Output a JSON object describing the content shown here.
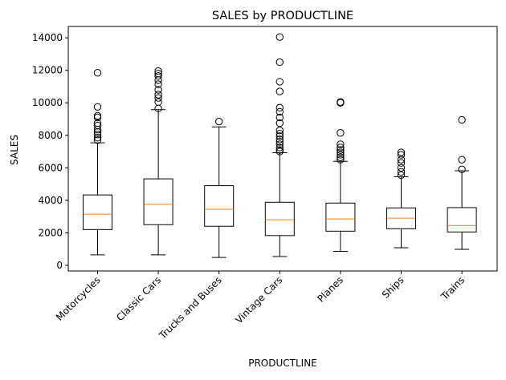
{
  "chart_data": {
    "type": "box",
    "title": "SALES by PRODUCTLINE",
    "xlabel": "PRODUCTLINE",
    "ylabel": "SALES",
    "ylim": [
      -350,
      14700
    ],
    "yticks": [
      0,
      2000,
      4000,
      6000,
      8000,
      10000,
      12000,
      14000
    ],
    "grid": false,
    "colors": {
      "box": "#000000",
      "median": "#ff7f0e",
      "background": "#ffffff"
    },
    "categories": [
      "Motorcycles",
      "Classic Cars",
      "Trucks and Buses",
      "Vintage Cars",
      "Planes",
      "Ships",
      "Trains"
    ],
    "boxes": [
      {
        "category": "Motorcycles",
        "whislo": 640,
        "q1": 2200,
        "median": 3150,
        "q3": 4330,
        "whishi": 7540,
        "fliers": [
          7700,
          7850,
          8050,
          8200,
          8350,
          8600,
          8750,
          9100,
          9200,
          9750,
          11850
        ]
      },
      {
        "category": "Classic Cars",
        "whislo": 640,
        "q1": 2500,
        "median": 3750,
        "q3": 5320,
        "whishi": 9580,
        "fliers": [
          9650,
          10050,
          10300,
          10500,
          10800,
          11150,
          11400,
          11650,
          11800,
          11950
        ]
      },
      {
        "category": "Trucks and Buses",
        "whislo": 480,
        "q1": 2400,
        "median": 3450,
        "q3": 4900,
        "whishi": 8520,
        "fliers": [
          8850
        ]
      },
      {
        "category": "Vintage Cars",
        "whislo": 540,
        "q1": 1830,
        "median": 2800,
        "q3": 3880,
        "whishi": 6930,
        "fliers": [
          7000,
          7100,
          7250,
          7450,
          7600,
          7750,
          7950,
          8100,
          8300,
          8750,
          9100,
          9450,
          9700,
          10700,
          11300,
          12500,
          14050
        ]
      },
      {
        "category": "Planes",
        "whislo": 860,
        "q1": 2100,
        "median": 2850,
        "q3": 3830,
        "whishi": 6400,
        "fliers": [
          6500,
          6650,
          6800,
          6950,
          7100,
          7250,
          7450,
          8150,
          10000,
          10050
        ]
      },
      {
        "category": "Ships",
        "whislo": 1080,
        "q1": 2250,
        "median": 2900,
        "q3": 3530,
        "whishi": 5450,
        "fliers": [
          5550,
          5750,
          6000,
          6300,
          6500,
          6800,
          6950
        ]
      },
      {
        "category": "Trains",
        "whislo": 980,
        "q1": 2050,
        "median": 2450,
        "q3": 3550,
        "whishi": 5820,
        "fliers": [
          5900,
          6500,
          8950
        ]
      }
    ]
  }
}
